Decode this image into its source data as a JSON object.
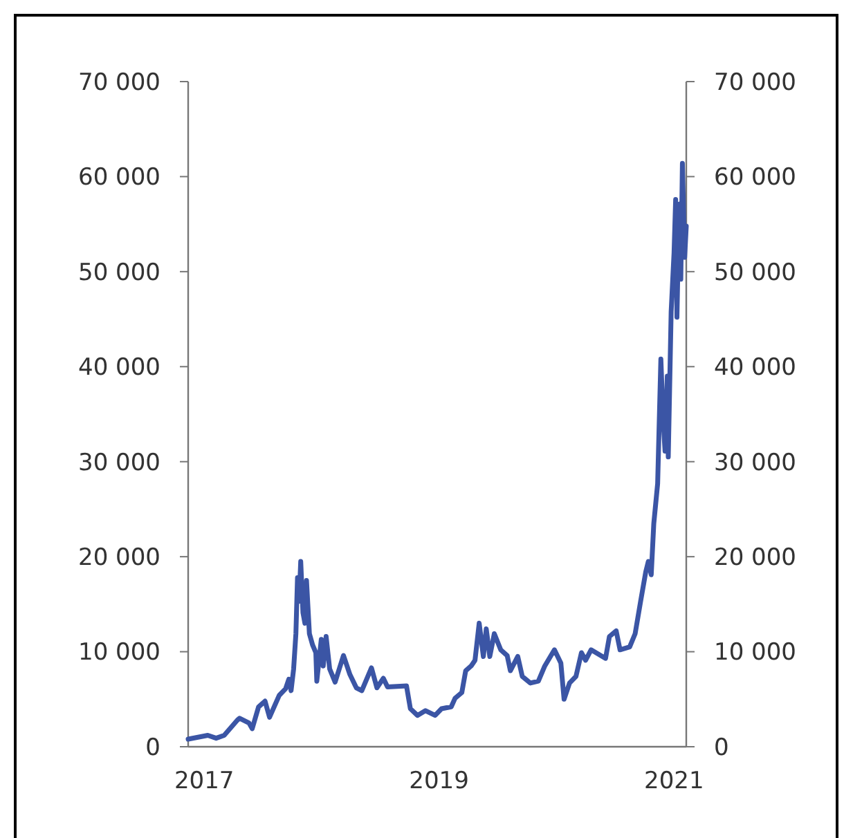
{
  "chart_data": {
    "type": "line",
    "xlim": [
      "2016-11-12",
      "2021-02-08"
    ],
    "xticks": [
      "2017",
      "2019",
      "2021"
    ],
    "ylim": [
      0,
      70000
    ],
    "yticks": [
      {
        "value": 0,
        "label": "0"
      },
      {
        "value": 10000,
        "label": "10 000"
      },
      {
        "value": 20000,
        "label": "20 000"
      },
      {
        "value": 30000,
        "label": "30 000"
      },
      {
        "value": 40000,
        "label": "40 000"
      },
      {
        "value": 50000,
        "label": "50 000"
      },
      {
        "value": 60000,
        "label": "60 000"
      },
      {
        "value": 70000,
        "label": "70 000"
      }
    ],
    "y2lim": [
      0,
      70000
    ],
    "y2ticks": [
      {
        "value": 0,
        "label": "0"
      },
      {
        "value": 10000,
        "label": "10 000"
      },
      {
        "value": 20000,
        "label": "20 000"
      },
      {
        "value": 30000,
        "label": "30 000"
      },
      {
        "value": 40000,
        "label": "40 000"
      },
      {
        "value": 50000,
        "label": "50 000"
      },
      {
        "value": 60000,
        "label": "60 000"
      },
      {
        "value": 70000,
        "label": "70 000"
      }
    ],
    "grid": false,
    "marker": "none",
    "line_style": "solid",
    "x": [
      "2016-11-12",
      "2017-01-12",
      "2017-02-07",
      "2017-03-04",
      "2017-04-14",
      "2017-04-21",
      "2017-05-20",
      "2017-05-30",
      "2017-06-19",
      "2017-07-09",
      "2017-07-23",
      "2017-08-22",
      "2017-09-11",
      "2017-09-21",
      "2017-09-28",
      "2017-10-06",
      "2017-10-13",
      "2017-10-18",
      "2017-10-23",
      "2017-10-28",
      "2017-11-04",
      "2017-11-10",
      "2017-11-15",
      "2017-11-24",
      "2017-12-04",
      "2017-12-14",
      "2017-12-17",
      "2017-12-31",
      "2018-01-06",
      "2018-01-15",
      "2018-01-26",
      "2018-02-12",
      "2018-03-10",
      "2018-03-30",
      "2018-04-19",
      "2018-05-06",
      "2018-06-05",
      "2018-06-22",
      "2018-07-12",
      "2018-07-25",
      "2018-09-22",
      "2018-10-04",
      "2018-10-26",
      "2018-11-20",
      "2018-12-20",
      "2019-01-09",
      "2019-02-08",
      "2019-02-20",
      "2019-03-13",
      "2019-03-25",
      "2019-04-11",
      "2019-04-23",
      "2019-05-06",
      "2019-05-19",
      "2019-05-28",
      "2019-06-08",
      "2019-06-22",
      "2019-07-12",
      "2019-08-01",
      "2019-08-11",
      "2019-09-03",
      "2019-09-17",
      "2019-10-12",
      "2019-11-06",
      "2019-11-26",
      "2019-12-26",
      "2020-01-15",
      "2020-01-25",
      "2020-02-11",
      "2020-03-02",
      "2020-03-19",
      "2020-04-01",
      "2020-04-18",
      "2020-06-02",
      "2020-06-14",
      "2020-07-05",
      "2020-07-17",
      "2020-08-16",
      "2020-09-02",
      "2020-09-19",
      "2020-10-05",
      "2020-10-13",
      "2020-10-22",
      "2020-10-30",
      "2020-11-11",
      "2020-11-21",
      "2020-11-28",
      "2020-12-04",
      "2020-12-11",
      "2020-12-14",
      "2020-12-23",
      "2021-01-01",
      "2021-01-06",
      "2021-01-10",
      "2021-01-17",
      "2021-01-22",
      "2021-01-27",
      "2021-02-03",
      "2021-02-08"
    ],
    "series": [
      {
        "color": "#3b55a5",
        "values": [
          800,
          1200,
          900,
          1200,
          2800,
          3000,
          2500,
          1900,
          4200,
          4800,
          3100,
          5400,
          6100,
          7100,
          5900,
          8200,
          11900,
          17800,
          15300,
          19500,
          14100,
          13000,
          17500,
          11900,
          10700,
          9900,
          6900,
          11300,
          8500,
          11600,
          8200,
          6800,
          9600,
          7600,
          6200,
          5900,
          8300,
          6200,
          7200,
          6300,
          6400,
          4000,
          3300,
          3800,
          3300,
          4000,
          4200,
          5100,
          5700,
          8000,
          8500,
          9100,
          13000,
          9500,
          12400,
          9500,
          11900,
          10200,
          9600,
          8000,
          9500,
          7400,
          6700,
          6900,
          8500,
          10200,
          8800,
          5000,
          6700,
          7400,
          9900,
          9100,
          10200,
          9300,
          11600,
          12200,
          10200,
          10500,
          11900,
          15300,
          18400,
          19500,
          18100,
          23500,
          27700,
          40800,
          34500,
          31100,
          39000,
          30500,
          45800,
          52000,
          57600,
          45200,
          57100,
          49200,
          61400,
          51500,
          54800
        ]
      }
    ]
  }
}
